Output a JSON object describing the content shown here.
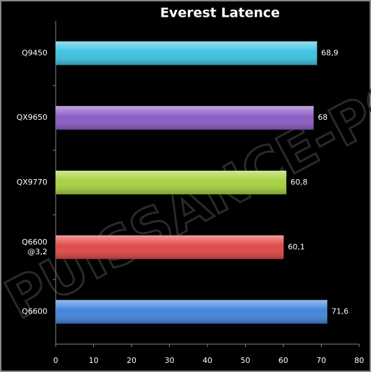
{
  "chart_data": {
    "type": "bar",
    "orientation": "horizontal",
    "title": "Everest Latence",
    "watermark": "PUISSANCE-PC",
    "categories": [
      "Q9450",
      "QX9650",
      "QX9770",
      [
        "Q6600",
        "@3,2"
      ],
      "Q6600"
    ],
    "values": [
      68.9,
      68,
      60.8,
      60.1,
      71.6
    ],
    "value_labels": [
      "68,9",
      "68",
      "60,8",
      "60,1",
      "71,6"
    ],
    "colors": [
      "#3ec3e3",
      "#8c5dc6",
      "#a6d140",
      "#e04a48",
      "#4384da"
    ],
    "xlim": [
      0,
      80
    ],
    "xticks": [
      0,
      10,
      20,
      30,
      40,
      50,
      60,
      70,
      80
    ],
    "grid": false
  }
}
